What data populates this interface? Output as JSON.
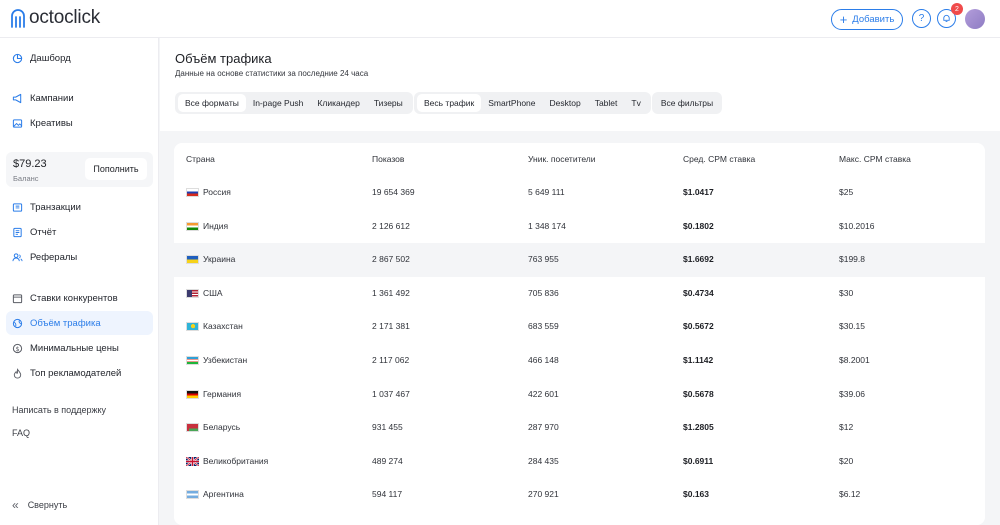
{
  "header": {
    "logo_text": "octoclick",
    "add_label": "Добавить",
    "notifications_count": "2"
  },
  "sidebar": {
    "items": [
      {
        "label": "Дашборд",
        "icon": "pie-chart-icon"
      },
      {
        "label": "Кампании",
        "icon": "megaphone-icon"
      },
      {
        "label": "Креативы",
        "icon": "image-icon"
      },
      {
        "label": "Транзакции",
        "icon": "wallet-icon"
      },
      {
        "label": "Отчёт",
        "icon": "document-icon"
      },
      {
        "label": "Рефералы",
        "icon": "users-icon"
      },
      {
        "label": "Ставки конкурентов",
        "icon": "calendar-icon"
      },
      {
        "label": "Объём трафика",
        "icon": "globe-icon"
      },
      {
        "label": "Минимальные цены",
        "icon": "dollar-icon"
      },
      {
        "label": "Топ рекламодателей",
        "icon": "flame-icon"
      }
    ],
    "balance_amount": "$79.23",
    "balance_label": "Баланс",
    "topup_label": "Пополнить",
    "support_label": "Написать в поддержку",
    "faq_label": "FAQ",
    "collapse_label": "Свернуть"
  },
  "page": {
    "title": "Объём трафика",
    "subtitle": "Данные на основе статистики за последние 24 часа",
    "formats": [
      "Все форматы",
      "In-page Push",
      "Кликандер",
      "Тизеры"
    ],
    "devices": [
      "Весь трафик",
      "SmartPhone",
      "Desktop",
      "Tablet",
      "Tv"
    ],
    "filters_label": "Все фильтры"
  },
  "table": {
    "columns": [
      "Страна",
      "Показов",
      "Уник. посетители",
      "Сред. CPM ставка",
      "Макс. CPM ставка"
    ],
    "rows": [
      {
        "country": "Россия",
        "impressions": "19 654 369",
        "unique": "5 649 111",
        "avg_cpm": "$1.0417",
        "max_cpm": "$25"
      },
      {
        "country": "Индия",
        "impressions": "2 126 612",
        "unique": "1 348 174",
        "avg_cpm": "$0.1802",
        "max_cpm": "$10.2016"
      },
      {
        "country": "Украина",
        "impressions": "2 867 502",
        "unique": "763 955",
        "avg_cpm": "$1.6692",
        "max_cpm": "$199.8"
      },
      {
        "country": "США",
        "impressions": "1 361 492",
        "unique": "705 836",
        "avg_cpm": "$0.4734",
        "max_cpm": "$30"
      },
      {
        "country": "Казахстан",
        "impressions": "2 171 381",
        "unique": "683 559",
        "avg_cpm": "$0.5672",
        "max_cpm": "$30.15"
      },
      {
        "country": "Узбекистан",
        "impressions": "2 117 062",
        "unique": "466 148",
        "avg_cpm": "$1.1142",
        "max_cpm": "$8.2001"
      },
      {
        "country": "Германия",
        "impressions": "1 037 467",
        "unique": "422 601",
        "avg_cpm": "$0.5678",
        "max_cpm": "$39.06"
      },
      {
        "country": "Беларусь",
        "impressions": "931 455",
        "unique": "287 970",
        "avg_cpm": "$1.2805",
        "max_cpm": "$12"
      },
      {
        "country": "Великобритания",
        "impressions": "489 274",
        "unique": "284 435",
        "avg_cpm": "$0.6911",
        "max_cpm": "$20"
      },
      {
        "country": "Аргентина",
        "impressions": "594 117",
        "unique": "270 921",
        "avg_cpm": "$0.163",
        "max_cpm": "$6.12"
      }
    ]
  },
  "colors": {
    "accent": "#2b7de9",
    "badge": "#f04b4b"
  }
}
